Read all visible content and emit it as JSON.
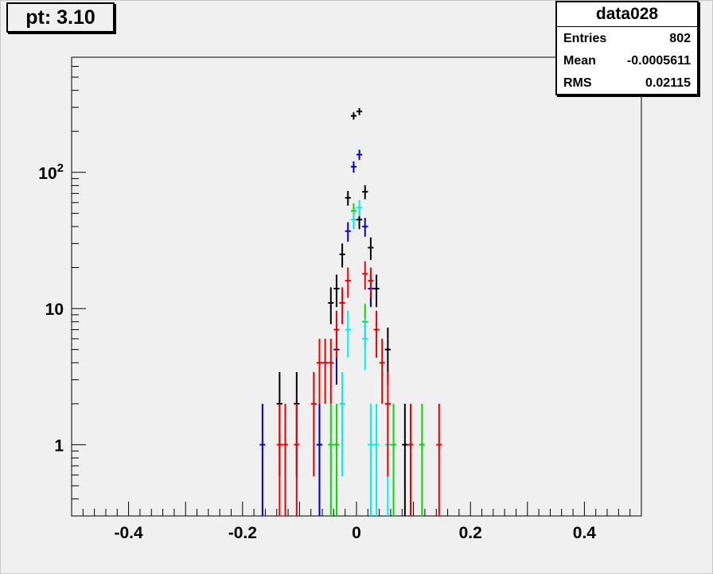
{
  "title": "pt: 3.10",
  "stats": {
    "name": "data028",
    "rows": [
      {
        "label": "Entries",
        "value": "802"
      },
      {
        "label": "Mean",
        "value": "-0.0005611"
      },
      {
        "label": "RMS",
        "value": "0.02115"
      }
    ]
  },
  "chart_data": {
    "type": "scatter",
    "title": "pt: 3.10",
    "xlabel": "",
    "ylabel": "",
    "xlim": [
      -0.5,
      0.5
    ],
    "ylim": [
      0.3,
      700
    ],
    "yscale": "log",
    "grid": false,
    "x_ticks": [
      -0.4,
      -0.2,
      0,
      0.2,
      0.4
    ],
    "x_tick_labels": [
      "-0.4",
      "-0.2",
      "0",
      "0.2",
      "0.4"
    ],
    "y_ticks": [
      1,
      10,
      100
    ],
    "y_tick_labels": [
      "1",
      "10",
      "10^2"
    ],
    "series": [
      {
        "color": "#000000",
        "points": [
          {
            "x": -0.135,
            "y": 2
          },
          {
            "x": -0.105,
            "y": 2
          },
          {
            "x": -0.065,
            "y": 1
          },
          {
            "x": -0.045,
            "y": 11
          },
          {
            "x": -0.035,
            "y": 14
          },
          {
            "x": -0.025,
            "y": 25
          },
          {
            "x": -0.015,
            "y": 65
          },
          {
            "x": 0.005,
            "y": 45
          },
          {
            "x": -0.005,
            "y": 260
          },
          {
            "x": 0.005,
            "y": 280
          },
          {
            "x": 0.015,
            "y": 72
          },
          {
            "x": 0.025,
            "y": 28
          },
          {
            "x": 0.035,
            "y": 14
          },
          {
            "x": 0.055,
            "y": 5
          },
          {
            "x": 0.085,
            "y": 1
          }
        ]
      },
      {
        "color": "#0000cc",
        "points": [
          {
            "x": -0.165,
            "y": 1
          },
          {
            "x": -0.065,
            "y": 1
          },
          {
            "x": -0.035,
            "y": 5
          },
          {
            "x": -0.015,
            "y": 37
          },
          {
            "x": -0.005,
            "y": 110
          },
          {
            "x": 0.005,
            "y": 135
          },
          {
            "x": 0.015,
            "y": 40
          },
          {
            "x": 0.025,
            "y": 14
          }
        ]
      },
      {
        "color": "#00dd00",
        "points": [
          {
            "x": -0.045,
            "y": 1
          },
          {
            "x": -0.035,
            "y": 1
          },
          {
            "x": -0.005,
            "y": 52
          },
          {
            "x": 0.015,
            "y": 8
          },
          {
            "x": 0.065,
            "y": 1
          },
          {
            "x": 0.115,
            "y": 1
          }
        ]
      },
      {
        "color": "#00eeee",
        "points": [
          {
            "x": -0.025,
            "y": 2
          },
          {
            "x": -0.015,
            "y": 7
          },
          {
            "x": -0.005,
            "y": 45
          },
          {
            "x": 0.005,
            "y": 55
          },
          {
            "x": 0.015,
            "y": 6
          },
          {
            "x": 0.025,
            "y": 1
          },
          {
            "x": 0.035,
            "y": 1
          },
          {
            "x": 0.055,
            "y": 1
          }
        ]
      },
      {
        "color": "#ee0000",
        "points": [
          {
            "x": -0.135,
            "y": 1
          },
          {
            "x": -0.125,
            "y": 1
          },
          {
            "x": -0.105,
            "y": 1
          },
          {
            "x": -0.075,
            "y": 2
          },
          {
            "x": -0.065,
            "y": 4
          },
          {
            "x": -0.055,
            "y": 4
          },
          {
            "x": -0.045,
            "y": 4
          },
          {
            "x": -0.035,
            "y": 7
          },
          {
            "x": -0.025,
            "y": 11
          },
          {
            "x": -0.015,
            "y": 16
          },
          {
            "x": 0.015,
            "y": 18
          },
          {
            "x": 0.025,
            "y": 16
          },
          {
            "x": 0.035,
            "y": 7
          },
          {
            "x": 0.045,
            "y": 4
          },
          {
            "x": 0.055,
            "y": 2
          },
          {
            "x": 0.095,
            "y": 1
          },
          {
            "x": 0.145,
            "y": 1
          }
        ]
      }
    ]
  }
}
